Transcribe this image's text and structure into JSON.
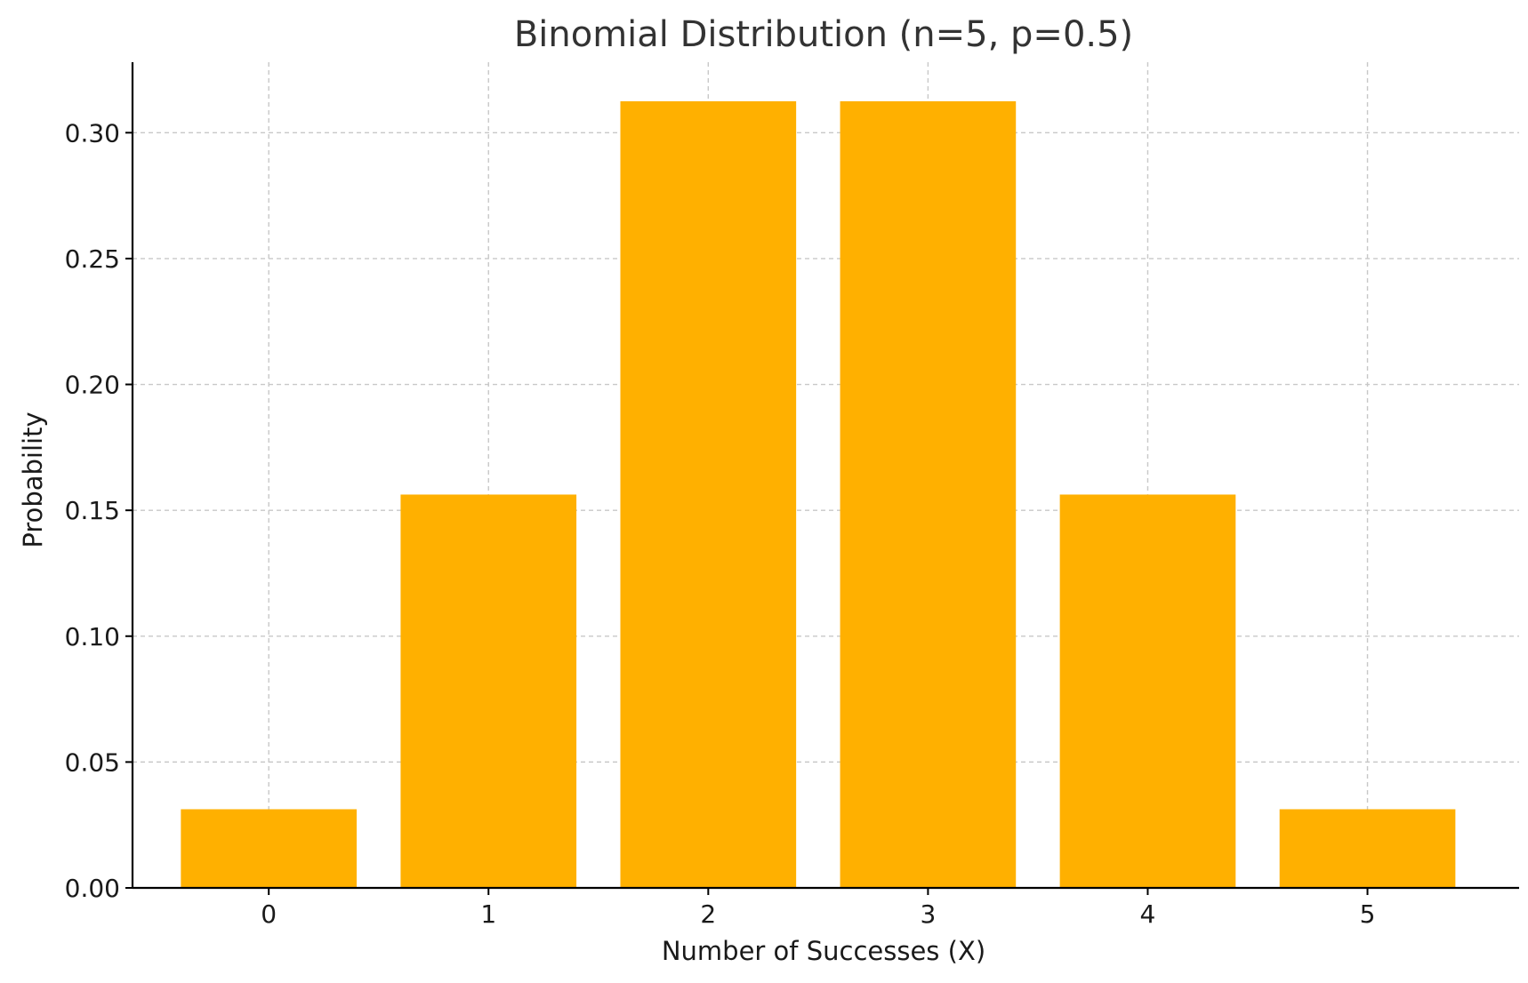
{
  "chart_data": {
    "type": "bar",
    "title": "Binomial Distribution (n=5, p=0.5)",
    "xlabel": "Number of Successes (X)",
    "ylabel": "Probability",
    "categories": [
      "0",
      "1",
      "2",
      "3",
      "4",
      "5"
    ],
    "values": [
      0.03125,
      0.15625,
      0.3125,
      0.3125,
      0.15625,
      0.03125
    ],
    "ylim": [
      0,
      0.328
    ],
    "yticks": [
      "0.00",
      "0.05",
      "0.10",
      "0.15",
      "0.20",
      "0.25",
      "0.30"
    ],
    "bar_color": "#ffb000",
    "grid": true,
    "legend": "none"
  }
}
